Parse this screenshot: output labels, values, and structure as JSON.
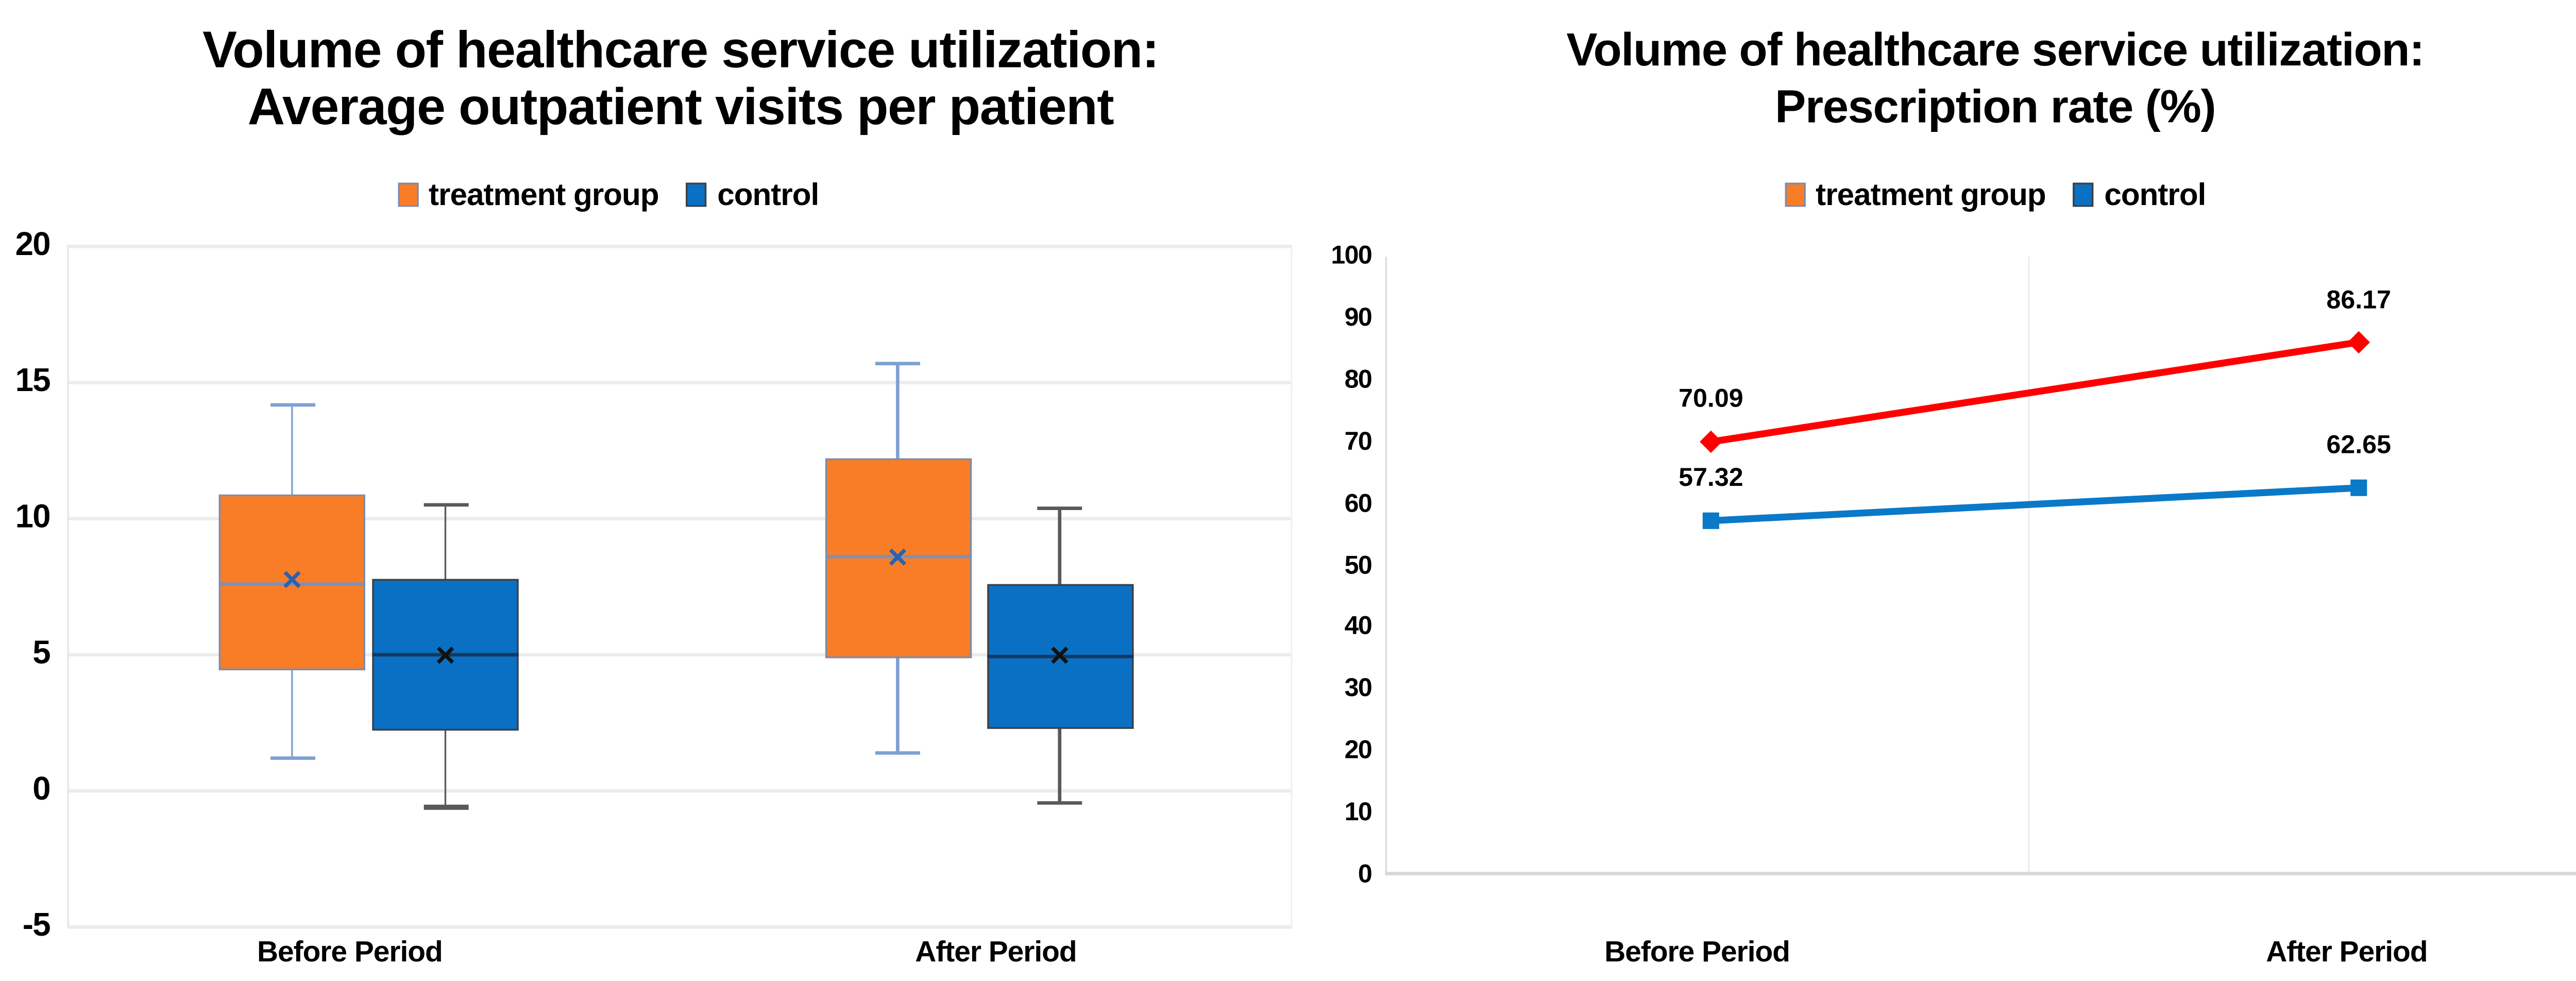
{
  "figure": {
    "background": "#ffffff"
  },
  "chart_data": [
    {
      "type": "boxplot",
      "title": "Volume of healthcare service utilization: Average outpatient visits per patient",
      "title_line1": "Volume of healthcare service utilization:",
      "title_line2": "Average outpatient visits per patient",
      "legend": [
        {
          "label": "treatment group",
          "swatch": "#F97D26"
        },
        {
          "label": "control",
          "swatch": "#0A70C4"
        }
      ],
      "legend_position": "top-center",
      "categories": [
        "Before Period",
        "After Period"
      ],
      "ylim": [
        -5,
        20
      ],
      "ytick_step": 5,
      "yticks": [
        20,
        15,
        10,
        5,
        0,
        -5
      ],
      "grid": "horizontal",
      "series": [
        {
          "name": "treatment group",
          "fill": "#F97D26",
          "border": "#7B8CB0",
          "whisker": "#7EA0D2",
          "median_color": "#7E90BA",
          "mean_color": "#2A62B0",
          "boxes": [
            {
              "category": "Before Period",
              "whisker_low": 1.2,
              "q1": 4.4,
              "median": 7.6,
              "mean": 7.7,
              "q3": 10.9,
              "whisker_high": 14.2
            },
            {
              "category": "After Period",
              "whisker_low": 1.4,
              "q1": 4.9,
              "median": 8.6,
              "mean": 8.55,
              "q3": 12.2,
              "whisker_high": 15.7
            }
          ]
        },
        {
          "name": "control",
          "fill": "#0A70C4",
          "border": "#3F3F3F",
          "whisker": "#595959",
          "median_color": "#17375E",
          "mean_color": "#111111",
          "boxes": [
            {
              "category": "Before Period",
              "whisker_low": -0.6,
              "q1": 2.2,
              "median": 5.0,
              "mean": 4.95,
              "q3": 7.8,
              "whisker_high": 10.5
            },
            {
              "category": "After Period",
              "whisker_low": -0.45,
              "q1": 2.3,
              "median": 4.95,
              "mean": 4.95,
              "q3": 7.6,
              "whisker_high": 10.4
            }
          ]
        }
      ]
    },
    {
      "type": "line",
      "title": "Volume of healthcare service utilization: Prescription rate (%)",
      "title_line1": "Volume of healthcare service utilization:",
      "title_line2": "Prescription rate (%)",
      "legend": [
        {
          "label": "treatment group",
          "swatch": "#F97D26"
        },
        {
          "label": "control",
          "swatch": "#0A70C4"
        }
      ],
      "legend_position": "top-center",
      "categories": [
        "Before Period",
        "After Period"
      ],
      "ylim": [
        0,
        100
      ],
      "ytick_step": 10,
      "grid": "vertical-category-divider",
      "data_labels": true,
      "series": [
        {
          "name": "treatment group",
          "color": "#FF0000",
          "marker": "diamond",
          "values": [
            70.09,
            86.17
          ]
        },
        {
          "name": "control",
          "color": "#0A79C8",
          "marker": "square",
          "values": [
            57.32,
            62.65
          ]
        }
      ]
    }
  ]
}
